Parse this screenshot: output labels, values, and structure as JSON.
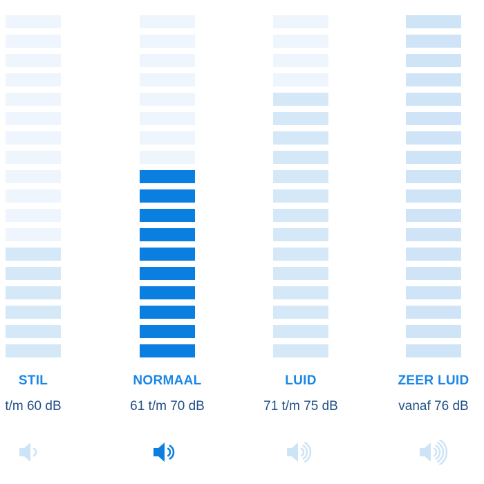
{
  "colors": {
    "active": "#0a7fe0",
    "background": "#ffffff",
    "inactive_label": "#1a86e6",
    "range_text": "#1f4f86"
  },
  "categories": [
    {
      "label": "STIL",
      "range": "t/m 60 dB",
      "active": false,
      "level": 6,
      "label_color": "#1a86e6",
      "range_color": "#1f4f86",
      "speaker_waves": 1,
      "speaker_color": "#cde4f7",
      "icon": "speaker-one-wave-icon",
      "segment_colors": [
        "#eef5fc",
        "#eef5fc",
        "#eef5fc",
        "#eef5fc",
        "#eef5fc",
        "#eef5fc",
        "#eef5fc",
        "#eef5fc",
        "#eef5fc",
        "#eef5fc",
        "#eef5fc",
        "#eef5fc",
        "#d4e8f8",
        "#d4e8f8",
        "#d4e8f8",
        "#d4e8f8",
        "#d4e8f8",
        "#d4e8f8"
      ]
    },
    {
      "label": "NORMAAL",
      "range": "61 t/m 70 dB",
      "active": true,
      "level": 10,
      "label_color": "#1a86e6",
      "range_color": "#1f4f86",
      "speaker_waves": 2,
      "speaker_color": "#0a7fe0",
      "icon": "speaker-two-waves-icon",
      "segment_colors": [
        "#eef5fc",
        "#eef5fc",
        "#eef5fc",
        "#eef5fc",
        "#eef5fc",
        "#eef5fc",
        "#eef5fc",
        "#eef5fc",
        "#0a7fe0",
        "#0a7fe0",
        "#0a7fe0",
        "#0a7fe0",
        "#0a7fe0",
        "#0a7fe0",
        "#0a7fe0",
        "#0a7fe0",
        "#0a7fe0",
        "#0a7fe0"
      ]
    },
    {
      "label": "LUID",
      "range": "71 t/m 75 dB",
      "active": false,
      "level": 14,
      "label_color": "#1a86e6",
      "range_color": "#1f4f86",
      "speaker_waves": 3,
      "speaker_color": "#cde4f7",
      "icon": "speaker-three-waves-icon",
      "segment_colors": [
        "#eef5fc",
        "#eef5fc",
        "#eef5fc",
        "#eef5fc",
        "#d4e8f8",
        "#d4e8f8",
        "#d4e8f8",
        "#d4e8f8",
        "#d4e8f8",
        "#d4e8f8",
        "#d4e8f8",
        "#d4e8f8",
        "#d4e8f8",
        "#d4e8f8",
        "#d4e8f8",
        "#d4e8f8",
        "#d4e8f8",
        "#d4e8f8"
      ]
    },
    {
      "label": "ZEER LUID",
      "range": "vanaf 76 dB",
      "active": false,
      "level": 18,
      "label_color": "#1a86e6",
      "range_color": "#1f4f86",
      "speaker_waves": 4,
      "speaker_color": "#cde4f7",
      "icon": "speaker-four-waves-icon",
      "segment_colors": [
        "#cfe5f7",
        "#cfe5f7",
        "#cfe5f7",
        "#cfe5f7",
        "#cfe5f7",
        "#cfe5f7",
        "#cfe5f7",
        "#cfe5f7",
        "#cfe5f7",
        "#cfe5f7",
        "#cfe5f7",
        "#cfe5f7",
        "#cfe5f7",
        "#cfe5f7",
        "#cfe5f7",
        "#cfe5f7",
        "#cfe5f7",
        "#cfe5f7"
      ]
    }
  ]
}
